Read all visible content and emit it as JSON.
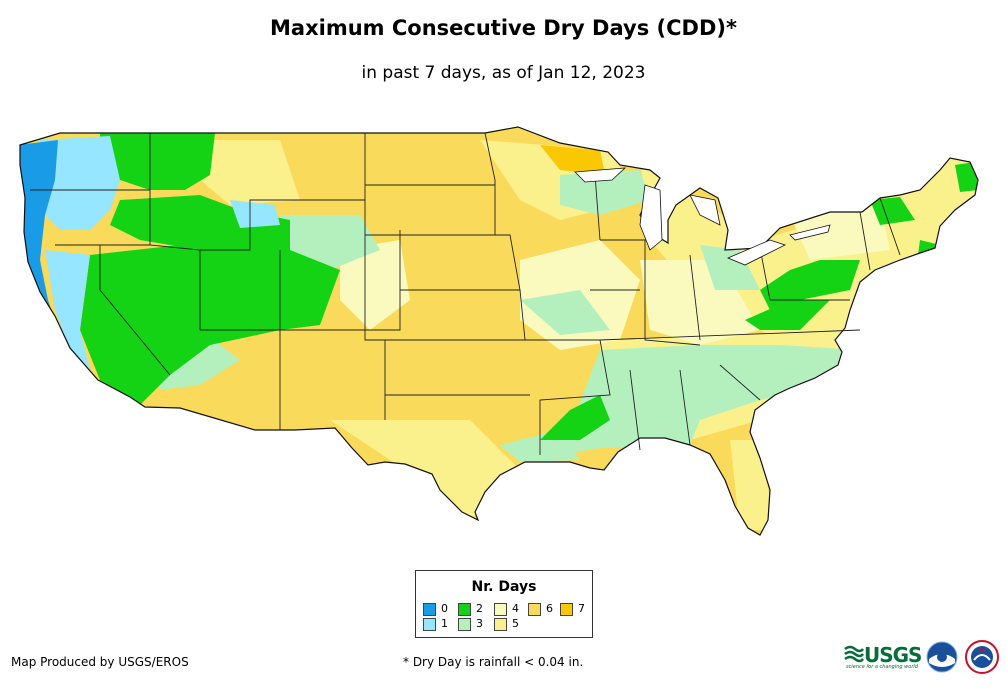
{
  "title": "Maximum Consecutive Dry Days (CDD)*",
  "subtitle": "in past 7 days, as of Jan 12, 2023",
  "legend": {
    "title": "Nr. Days",
    "items": [
      {
        "label": "0",
        "color": "#1a9be6"
      },
      {
        "label": "1",
        "color": "#96e6ff"
      },
      {
        "label": "2",
        "color": "#14d214"
      },
      {
        "label": "3",
        "color": "#b4f0be"
      },
      {
        "label": "4",
        "color": "#fafabe"
      },
      {
        "label": "5",
        "color": "#faf08c"
      },
      {
        "label": "6",
        "color": "#fada5a"
      },
      {
        "label": "7",
        "color": "#fac800"
      }
    ]
  },
  "credit": "Map Produced by USGS/EROS",
  "footnote": "* Dry Day is rainfall < 0.04 in.",
  "logos": {
    "usgs": "USGS",
    "usgs_tagline": "science for a changing world",
    "noaa": "noaa-logo-icon",
    "nws": "nws-logo-icon"
  }
}
